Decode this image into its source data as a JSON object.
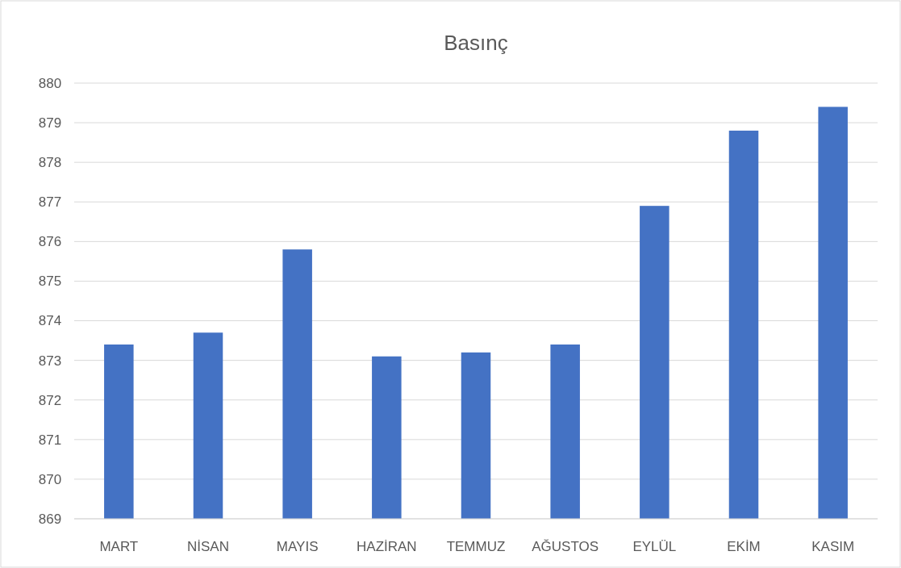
{
  "chart_data": {
    "type": "bar",
    "title": "Basınç",
    "categories": [
      "MART",
      "NİSAN",
      "MAYIS",
      "HAZİRAN",
      "TEMMUZ",
      "AĞUSTOS",
      "EYLÜL",
      "EKİM",
      "KASIM"
    ],
    "values": [
      873.4,
      873.7,
      875.8,
      873.1,
      873.2,
      873.4,
      876.9,
      878.8,
      879.4
    ],
    "color": "#4472c4",
    "ylim": [
      869,
      880
    ],
    "yticks": [
      869,
      870,
      871,
      872,
      873,
      874,
      875,
      876,
      877,
      878,
      879,
      880
    ],
    "grid": "y"
  }
}
